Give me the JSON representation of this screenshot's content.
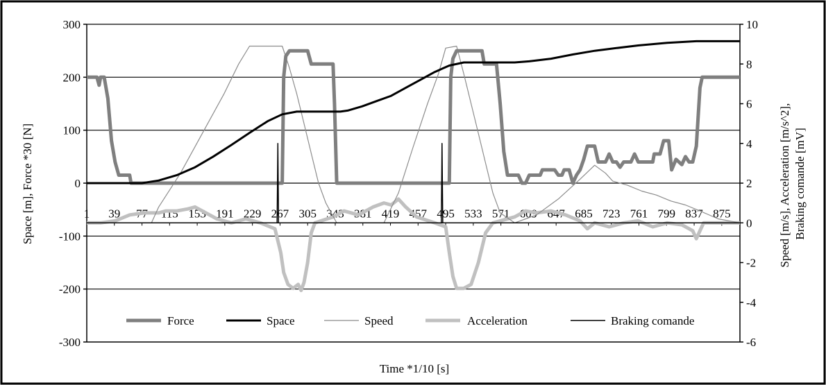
{
  "chart_data": {
    "type": "line",
    "title": "",
    "xlabel": "Time *1/10 [s]",
    "ylabel_left": "Space [m], Force *30  [N]",
    "ylabel_right": [
      "Speed [m/s], Acceleration [m/s^2],",
      "Braking comande [mV]"
    ],
    "x_range": [
      1,
      900
    ],
    "x_ticks": [
      "1",
      "39",
      "77",
      "115",
      "153",
      "191",
      "229",
      "267",
      "305",
      "343",
      "381",
      "419",
      "457",
      "495",
      "533",
      "571",
      "609",
      "647",
      "685",
      "723",
      "761",
      "799",
      "837",
      "875"
    ],
    "y_left_range": [
      -300,
      300
    ],
    "y_left_ticks": [
      "300",
      "200",
      "100",
      "0",
      "-100",
      "-200",
      "-300"
    ],
    "y_right_range": [
      -6,
      10
    ],
    "y_right_ticks": [
      "10",
      "8",
      "6",
      "4",
      "2",
      "0",
      "-2",
      "-4",
      "-6"
    ],
    "grid": "horizontal",
    "legend_position": "bottom-inside",
    "series": [
      {
        "name": "Force",
        "axis": "left",
        "color": "#7f7f7f",
        "points": [
          [
            1,
            200
          ],
          [
            15,
            200
          ],
          [
            18,
            185
          ],
          [
            20,
            200
          ],
          [
            25,
            200
          ],
          [
            30,
            160
          ],
          [
            35,
            80
          ],
          [
            40,
            40
          ],
          [
            45,
            15
          ],
          [
            60,
            15
          ],
          [
            62,
            0
          ],
          [
            270,
            0
          ],
          [
            272,
            200
          ],
          [
            275,
            240
          ],
          [
            280,
            250
          ],
          [
            300,
            250
          ],
          [
            305,
            250
          ],
          [
            310,
            225
          ],
          [
            330,
            225
          ],
          [
            335,
            225
          ],
          [
            340,
            225
          ],
          [
            342,
            150
          ],
          [
            345,
            0
          ],
          [
            500,
            0
          ],
          [
            502,
            200
          ],
          [
            505,
            235
          ],
          [
            510,
            250
          ],
          [
            535,
            250
          ],
          [
            545,
            250
          ],
          [
            548,
            225
          ],
          [
            560,
            225
          ],
          [
            565,
            225
          ],
          [
            570,
            150
          ],
          [
            575,
            60
          ],
          [
            580,
            15
          ],
          [
            590,
            15
          ],
          [
            595,
            15
          ],
          [
            600,
            0
          ],
          [
            605,
            0
          ],
          [
            610,
            15
          ],
          [
            625,
            15
          ],
          [
            628,
            25
          ],
          [
            645,
            25
          ],
          [
            650,
            15
          ],
          [
            655,
            15
          ],
          [
            658,
            25
          ],
          [
            665,
            25
          ],
          [
            670,
            0
          ],
          [
            675,
            15
          ],
          [
            680,
            25
          ],
          [
            685,
            45
          ],
          [
            690,
            70
          ],
          [
            700,
            70
          ],
          [
            705,
            40
          ],
          [
            715,
            40
          ],
          [
            720,
            55
          ],
          [
            725,
            40
          ],
          [
            730,
            40
          ],
          [
            735,
            30
          ],
          [
            740,
            40
          ],
          [
            750,
            40
          ],
          [
            755,
            55
          ],
          [
            760,
            40
          ],
          [
            780,
            40
          ],
          [
            782,
            55
          ],
          [
            790,
            55
          ],
          [
            795,
            80
          ],
          [
            802,
            80
          ],
          [
            806,
            25
          ],
          [
            812,
            45
          ],
          [
            820,
            35
          ],
          [
            825,
            50
          ],
          [
            830,
            40
          ],
          [
            835,
            40
          ],
          [
            840,
            70
          ],
          [
            845,
            180
          ],
          [
            848,
            200
          ],
          [
            900,
            200
          ]
        ]
      },
      {
        "name": "Space",
        "axis": "left",
        "color": "#000000",
        "points": [
          [
            1,
            0
          ],
          [
            77,
            0
          ],
          [
            100,
            5
          ],
          [
            125,
            15
          ],
          [
            150,
            30
          ],
          [
            175,
            50
          ],
          [
            200,
            72
          ],
          [
            225,
            95
          ],
          [
            250,
            117
          ],
          [
            270,
            130
          ],
          [
            290,
            135
          ],
          [
            350,
            135
          ],
          [
            360,
            137
          ],
          [
            380,
            145
          ],
          [
            400,
            155
          ],
          [
            420,
            165
          ],
          [
            440,
            180
          ],
          [
            460,
            195
          ],
          [
            480,
            210
          ],
          [
            500,
            222
          ],
          [
            520,
            228
          ],
          [
            530,
            228
          ],
          [
            590,
            228
          ],
          [
            610,
            230
          ],
          [
            640,
            235
          ],
          [
            670,
            243
          ],
          [
            700,
            250
          ],
          [
            730,
            255
          ],
          [
            760,
            260
          ],
          [
            800,
            265
          ],
          [
            840,
            268
          ],
          [
            900,
            268
          ]
        ]
      },
      {
        "name": "Speed",
        "axis": "right",
        "color": "#8c8c8c",
        "points": [
          [
            1,
            0
          ],
          [
            90,
            0
          ],
          [
            100,
            0.8
          ],
          [
            130,
            2.5
          ],
          [
            160,
            4.5
          ],
          [
            190,
            6.5
          ],
          [
            210,
            8
          ],
          [
            225,
            8.9
          ],
          [
            260,
            8.9
          ],
          [
            270,
            8.9
          ],
          [
            280,
            7.8
          ],
          [
            290,
            6.5
          ],
          [
            300,
            5
          ],
          [
            310,
            3.5
          ],
          [
            320,
            2
          ],
          [
            330,
            1
          ],
          [
            345,
            0
          ],
          [
            410,
            0
          ],
          [
            430,
            1.5
          ],
          [
            450,
            3.8
          ],
          [
            470,
            6
          ],
          [
            485,
            7.5
          ],
          [
            495,
            8.8
          ],
          [
            510,
            8.9
          ],
          [
            520,
            7.5
          ],
          [
            530,
            6
          ],
          [
            540,
            4.5
          ],
          [
            550,
            3
          ],
          [
            560,
            1.5
          ],
          [
            570,
            0.5
          ],
          [
            590,
            0
          ],
          [
            620,
            0.4
          ],
          [
            650,
            1.2
          ],
          [
            680,
            2.2
          ],
          [
            700,
            2.9
          ],
          [
            715,
            2.5
          ],
          [
            725,
            2.1
          ],
          [
            745,
            1.9
          ],
          [
            765,
            1.6
          ],
          [
            785,
            1.4
          ],
          [
            805,
            1.1
          ],
          [
            825,
            0.9
          ],
          [
            845,
            0.6
          ],
          [
            870,
            0.2
          ],
          [
            900,
            0
          ]
        ]
      },
      {
        "name": "Acceleration",
        "axis": "right",
        "color": "#c0c0c0",
        "points": [
          [
            1,
            0
          ],
          [
            20,
            0
          ],
          [
            40,
            0.1
          ],
          [
            60,
            0.4
          ],
          [
            80,
            0.5
          ],
          [
            100,
            0.5
          ],
          [
            110,
            0.6
          ],
          [
            125,
            0.6
          ],
          [
            140,
            0.7
          ],
          [
            150,
            0.8
          ],
          [
            165,
            0.5
          ],
          [
            180,
            0.2
          ],
          [
            200,
            0
          ],
          [
            220,
            0.2
          ],
          [
            240,
            0
          ],
          [
            260,
            -0.3
          ],
          [
            268,
            -1.5
          ],
          [
            272,
            -2.5
          ],
          [
            278,
            -3.1
          ],
          [
            285,
            -3.3
          ],
          [
            292,
            -3.1
          ],
          [
            296,
            -3.4
          ],
          [
            300,
            -3
          ],
          [
            305,
            -2
          ],
          [
            310,
            -0.5
          ],
          [
            315,
            0
          ],
          [
            340,
            0.3
          ],
          [
            355,
            0.6
          ],
          [
            375,
            0.4
          ],
          [
            395,
            0.8
          ],
          [
            410,
            1
          ],
          [
            420,
            0.9
          ],
          [
            430,
            1.2
          ],
          [
            440,
            0.8
          ],
          [
            455,
            0.3
          ],
          [
            480,
            0
          ],
          [
            495,
            -0.2
          ],
          [
            500,
            -1.5
          ],
          [
            505,
            -2.7
          ],
          [
            510,
            -3.3
          ],
          [
            520,
            -3.3
          ],
          [
            530,
            -3.1
          ],
          [
            540,
            -2
          ],
          [
            550,
            -0.5
          ],
          [
            560,
            0
          ],
          [
            590,
            0.3
          ],
          [
            605,
            0.6
          ],
          [
            620,
            0.5
          ],
          [
            640,
            0.6
          ],
          [
            660,
            0.4
          ],
          [
            680,
            0.1
          ],
          [
            690,
            -0.3
          ],
          [
            700,
            0
          ],
          [
            720,
            -0.2
          ],
          [
            740,
            0
          ],
          [
            760,
            0.1
          ],
          [
            780,
            -0.2
          ],
          [
            800,
            0
          ],
          [
            820,
            -0.1
          ],
          [
            835,
            -0.4
          ],
          [
            840,
            -0.8
          ],
          [
            845,
            -0.4
          ],
          [
            850,
            0
          ],
          [
            900,
            0
          ]
        ]
      },
      {
        "name": "Braking comande",
        "axis": "right",
        "color": "#000000",
        "points": [
          [
            1,
            0
          ],
          [
            263,
            0
          ],
          [
            264,
            4
          ],
          [
            265,
            0
          ],
          [
            489,
            0
          ],
          [
            490,
            4
          ],
          [
            491,
            0
          ],
          [
            900,
            0
          ]
        ]
      }
    ]
  }
}
